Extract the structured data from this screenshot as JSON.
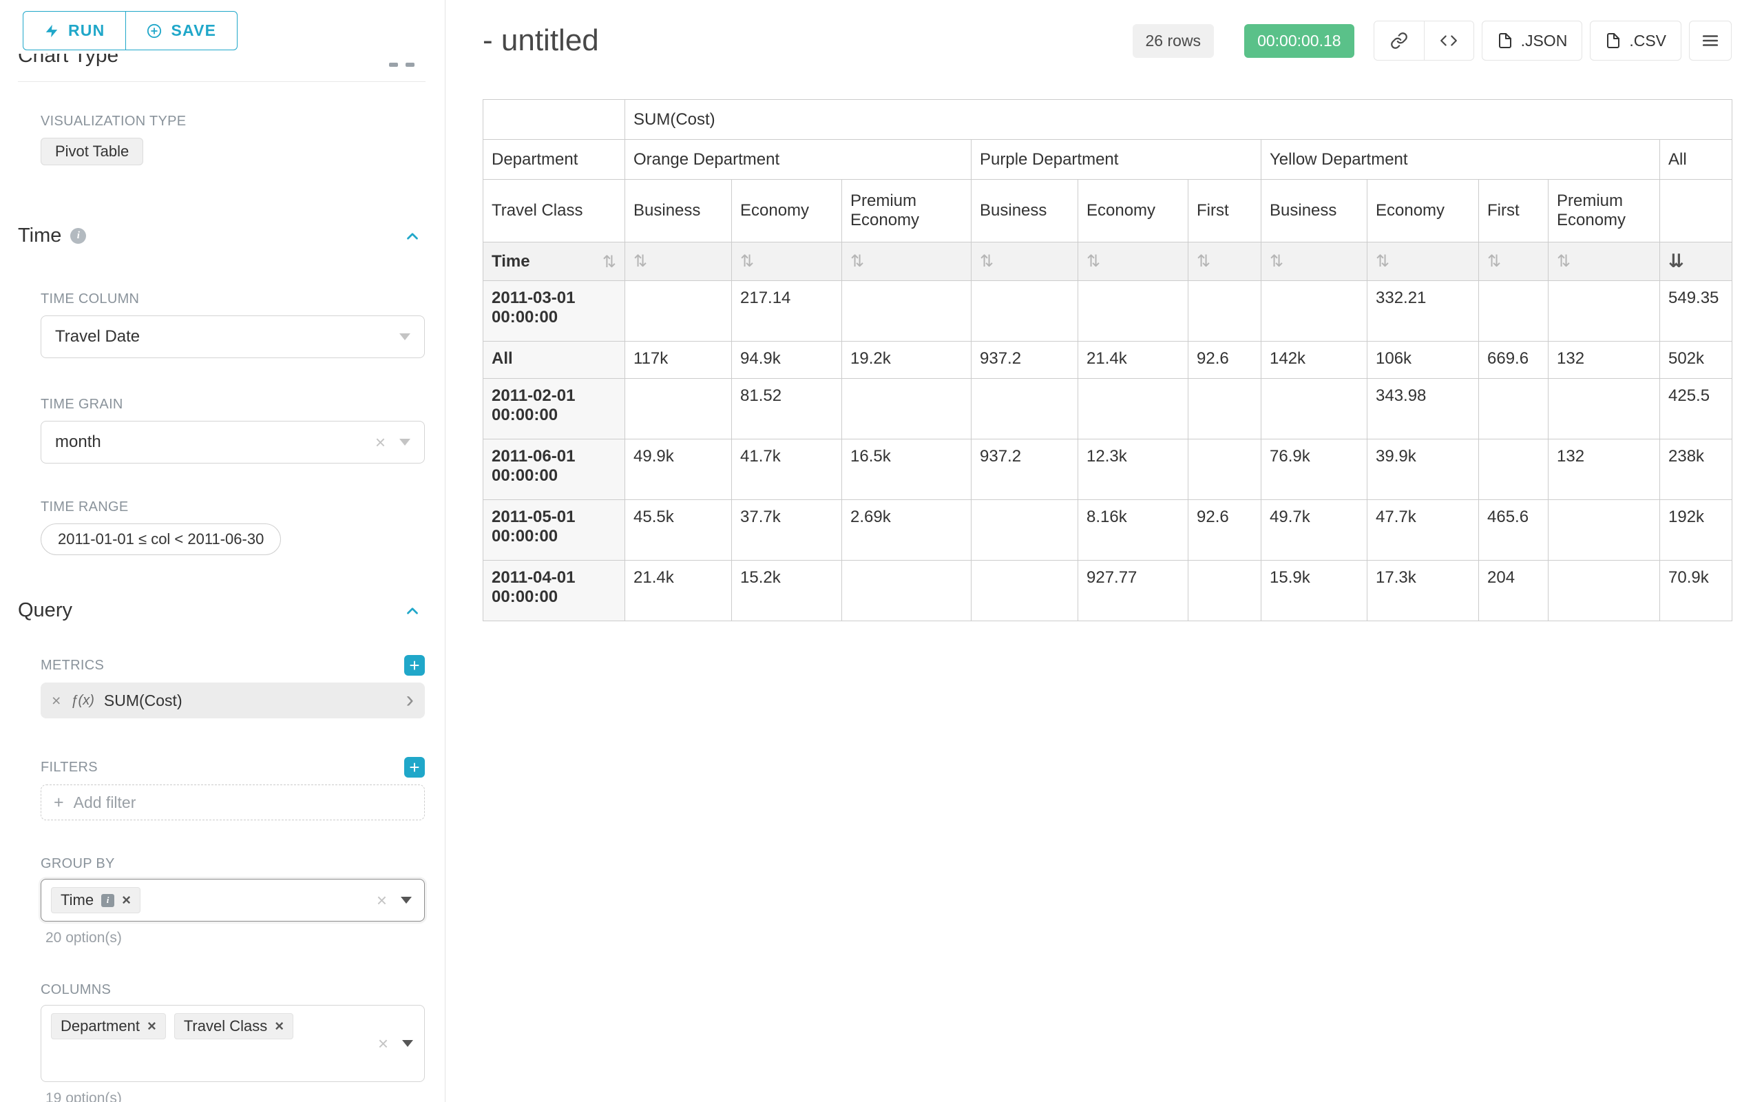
{
  "colors": {
    "accent": "#20a7c9",
    "success": "#5ac189"
  },
  "icons": {
    "sort": "⇅",
    "sort_active": "⇊",
    "close": "×",
    "plus": "+",
    "fx": "ƒ(x)",
    "chevron_right": "›",
    "info": "i"
  },
  "sidebar": {
    "run_label": "RUN",
    "save_label": "SAVE",
    "clipped_section": "Chart Type",
    "viz_type_label": "VISUALIZATION TYPE",
    "viz_type_value": "Pivot Table",
    "time_section": "Time",
    "time_column_label": "TIME COLUMN",
    "time_column_value": "Travel Date",
    "time_grain_label": "TIME GRAIN",
    "time_grain_value": "month",
    "time_range_label": "TIME RANGE",
    "time_range_value": "2011-01-01 ≤ col < 2011-06-30",
    "query_section": "Query",
    "metrics_label": "METRICS",
    "metric_value": "SUM(Cost)",
    "filters_label": "FILTERS",
    "add_filter_label": "Add filter",
    "group_by_label": "GROUP BY",
    "group_by_tags": [
      "Time"
    ],
    "group_by_options": "20 option(s)",
    "columns_label": "COLUMNS",
    "columns_tags": [
      "Department",
      "Travel Class"
    ],
    "columns_options": "19 option(s)"
  },
  "header": {
    "title": "- untitled",
    "rows_badge": "26 rows",
    "timer_badge": "00:00:00.18",
    "json_label": ".JSON",
    "csv_label": ".CSV"
  },
  "chart_data": {
    "type": "table",
    "metric_header": "SUM(Cost)",
    "department_label": "Department",
    "travel_class_label": "Travel Class",
    "time_label": "Time",
    "all_label": "All",
    "groups": [
      {
        "name": "Orange Department",
        "classes": [
          "Business",
          "Economy",
          "Premium Economy"
        ]
      },
      {
        "name": "Purple Department",
        "classes": [
          "Business",
          "Economy",
          "First"
        ]
      },
      {
        "name": "Yellow Department",
        "classes": [
          "Business",
          "Economy",
          "First",
          "Premium Economy"
        ]
      }
    ],
    "rows": [
      {
        "time": "2011-03-01 00:00:00",
        "values": [
          "",
          "217.14",
          "",
          "",
          "",
          "",
          "",
          "332.21",
          "",
          "",
          "549.35"
        ]
      },
      {
        "time": "All",
        "values": [
          "117k",
          "94.9k",
          "19.2k",
          "937.2",
          "21.4k",
          "92.6",
          "142k",
          "106k",
          "669.6",
          "132",
          "502k"
        ]
      },
      {
        "time": "2011-02-01 00:00:00",
        "values": [
          "",
          "81.52",
          "",
          "",
          "",
          "",
          "",
          "343.98",
          "",
          "",
          "425.5"
        ]
      },
      {
        "time": "2011-06-01 00:00:00",
        "values": [
          "49.9k",
          "41.7k",
          "16.5k",
          "937.2",
          "12.3k",
          "",
          "76.9k",
          "39.9k",
          "",
          "132",
          "238k"
        ]
      },
      {
        "time": "2011-05-01 00:00:00",
        "values": [
          "45.5k",
          "37.7k",
          "2.69k",
          "",
          "8.16k",
          "92.6",
          "49.7k",
          "47.7k",
          "465.6",
          "",
          "192k"
        ]
      },
      {
        "time": "2011-04-01 00:00:00",
        "values": [
          "21.4k",
          "15.2k",
          "",
          "",
          "927.77",
          "",
          "15.9k",
          "17.3k",
          "204",
          "",
          "70.9k"
        ]
      }
    ]
  }
}
